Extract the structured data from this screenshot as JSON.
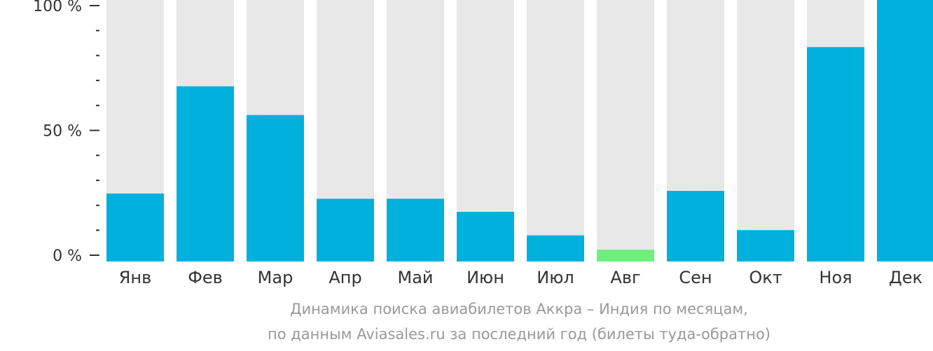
{
  "chart_data": {
    "type": "bar",
    "categories": [
      "Янв",
      "Фев",
      "Мар",
      "Апр",
      "Май",
      "Июн",
      "Июл",
      "Авг",
      "Сен",
      "Окт",
      "Ноя",
      "Дек"
    ],
    "values": [
      26,
      67,
      56,
      24,
      24,
      19,
      10,
      4.5,
      27,
      12,
      82,
      100
    ],
    "highlight_index": 7,
    "ylim": [
      0,
      100
    ],
    "yticks": [
      {
        "value": 0,
        "label": "0 %"
      },
      {
        "value": 50,
        "label": "50 %"
      },
      {
        "value": 100,
        "label": "100 %"
      }
    ],
    "minor_tick_step": 10,
    "colors": {
      "bar": "#00b0dd",
      "highlight": "#6ef07c",
      "background_bar": "#e8e8e8",
      "axis": "#333333"
    },
    "caption_lines": [
      "Динамика поиска авиабилетов Аккра – Индия по месяцам,",
      "по данным Aviasales.ru за последний год (билеты туда-обратно)"
    ]
  }
}
